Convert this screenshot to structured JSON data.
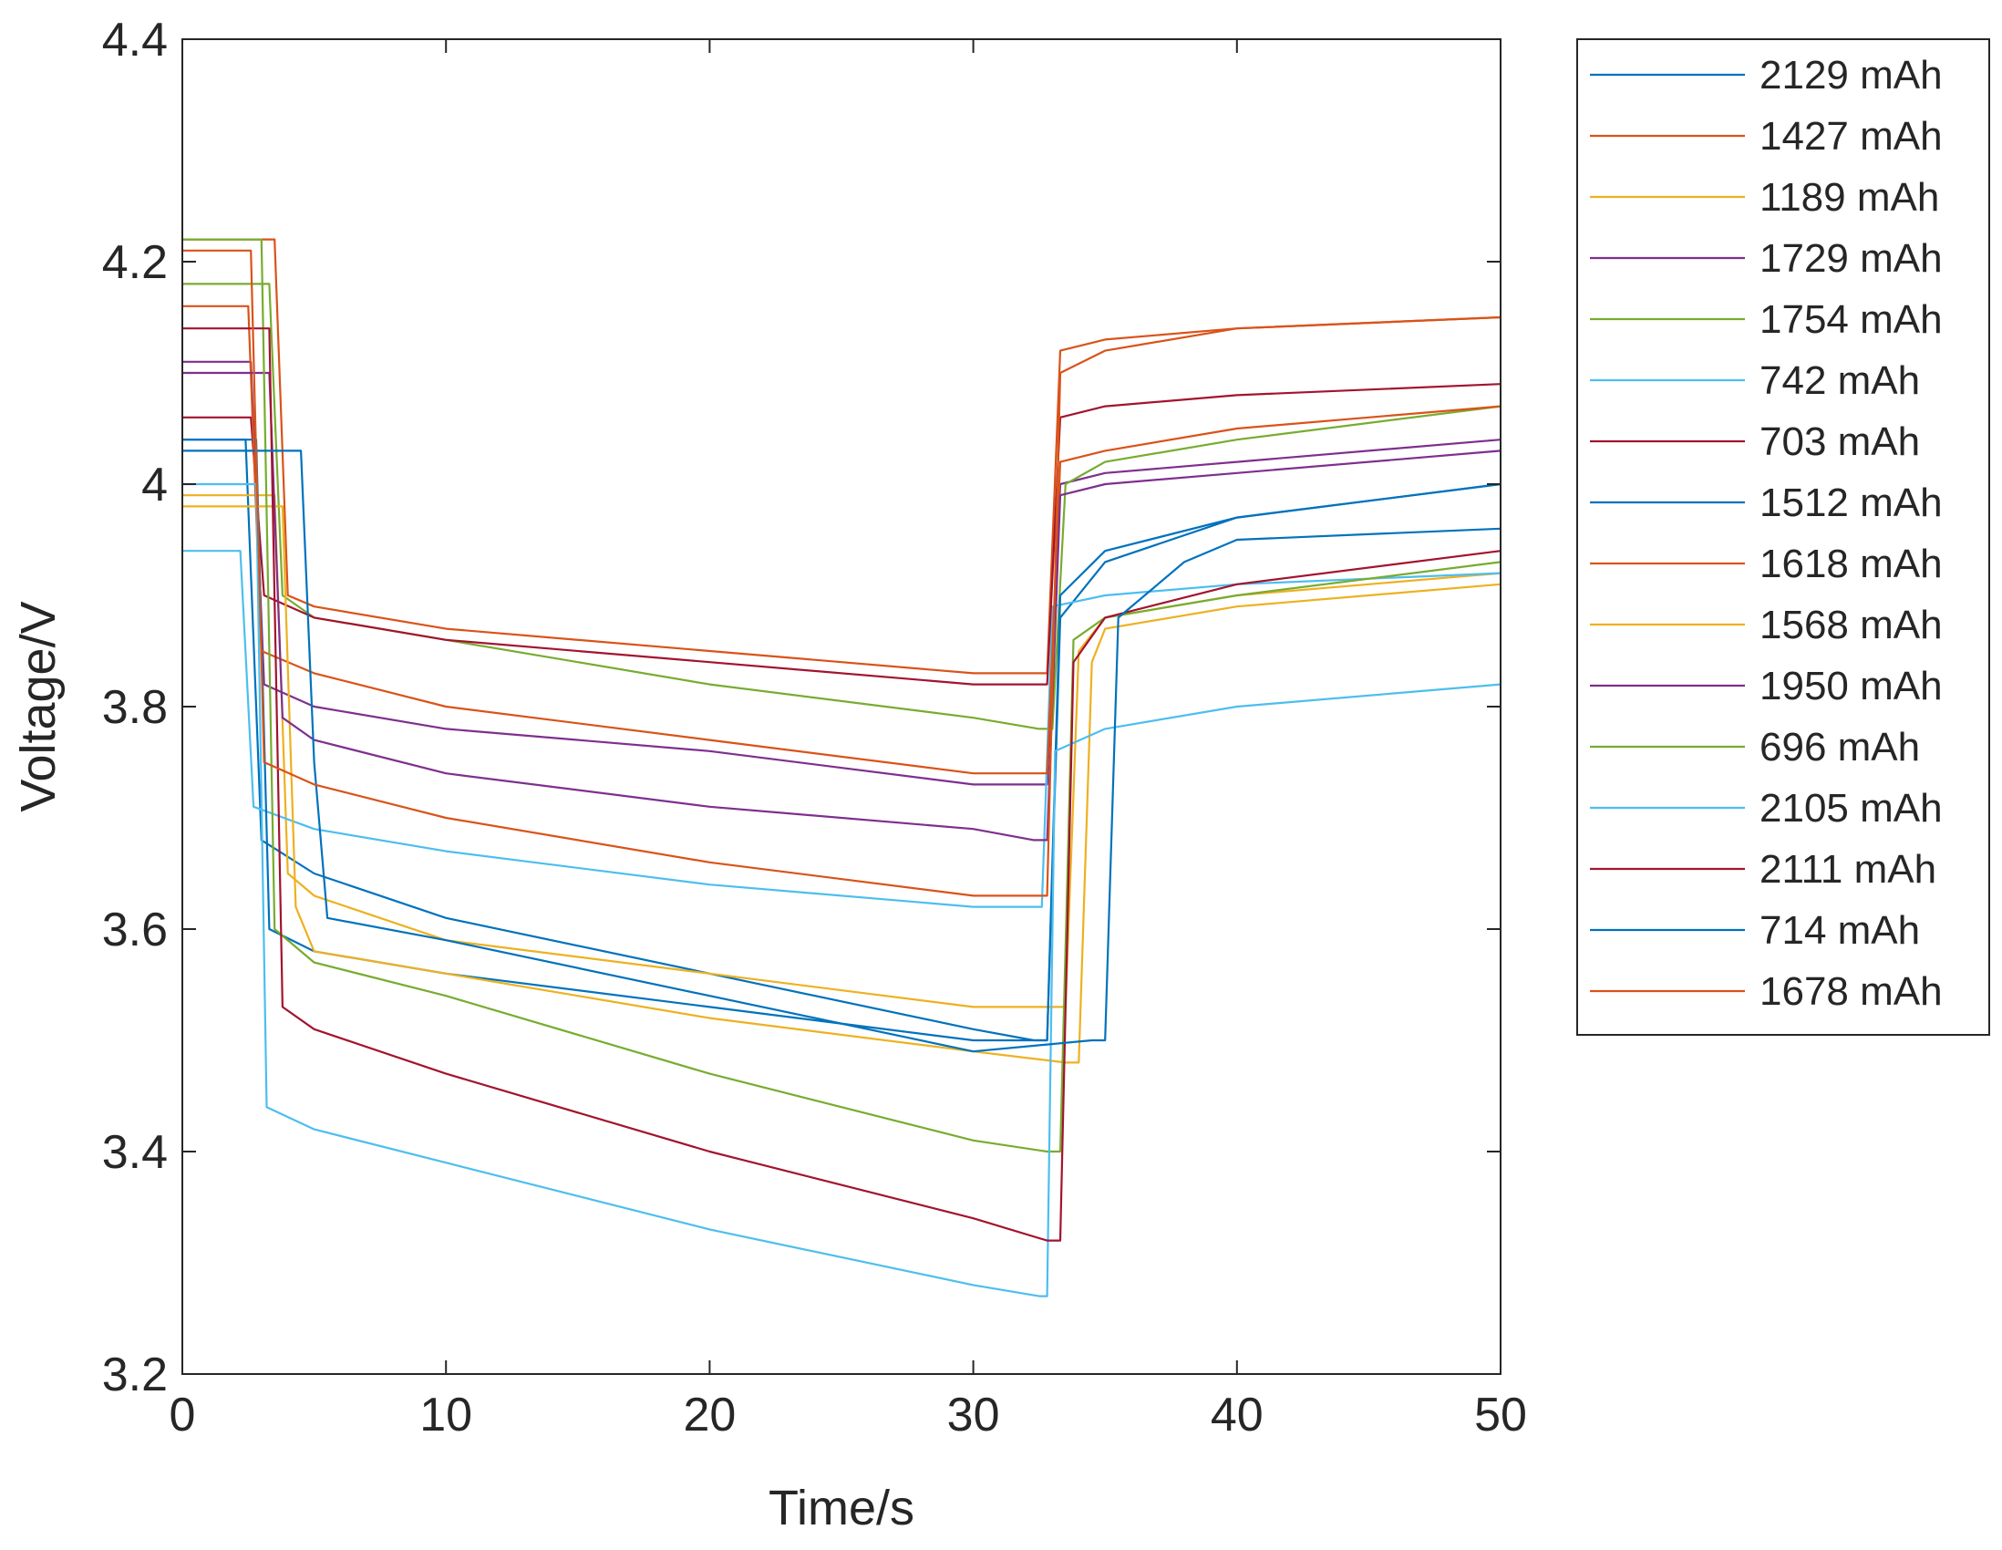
{
  "chart_data": {
    "type": "line",
    "title": "",
    "xlabel": "Time/s",
    "ylabel": "Voltage/V",
    "xlim": [
      0,
      50
    ],
    "ylim": [
      3.2,
      4.4
    ],
    "grid": false,
    "legend_position": "outside-top-right",
    "xticks": [
      0,
      10,
      20,
      30,
      40,
      50
    ],
    "xtick_labels": [
      "0",
      "10",
      "20",
      "30",
      "40",
      "50"
    ],
    "yticks": [
      3.2,
      3.4,
      3.6,
      3.8,
      4.0,
      4.2,
      4.4
    ],
    "ytick_labels": [
      "3.2",
      "3.4",
      "3.6",
      "3.8",
      "4",
      "4.2",
      "4.4"
    ],
    "series": [
      {
        "name": "2129 mAh",
        "color": "#0072BD",
        "x": [
          0,
          2.4,
          3.0,
          5,
          10,
          20,
          30,
          32.3,
          32.8,
          33.3,
          35,
          40,
          50
        ],
        "y": [
          4.04,
          4.04,
          3.68,
          3.65,
          3.61,
          3.56,
          3.51,
          3.5,
          3.5,
          3.88,
          3.93,
          3.97,
          4.0
        ]
      },
      {
        "name": "1427 mAh",
        "color": "#D95319",
        "x": [
          0,
          3.5,
          4.0,
          5,
          10,
          20,
          30,
          32.3,
          32.8,
          33.3,
          35,
          40,
          50
        ],
        "y": [
          4.22,
          4.22,
          3.9,
          3.89,
          3.87,
          3.85,
          3.83,
          3.83,
          3.83,
          4.12,
          4.13,
          4.14,
          4.15
        ]
      },
      {
        "name": "1189 mAh",
        "color": "#EDB120",
        "x": [
          0,
          3.5,
          4.0,
          5,
          10,
          20,
          30,
          33.0,
          33.5,
          34.0,
          35,
          40,
          50
        ],
        "y": [
          3.99,
          3.99,
          3.65,
          3.63,
          3.59,
          3.56,
          3.53,
          3.53,
          3.53,
          3.85,
          3.88,
          3.9,
          3.92
        ]
      },
      {
        "name": "1729 mAh",
        "color": "#7E2F8E",
        "x": [
          0,
          2.6,
          3.1,
          5,
          10,
          20,
          30,
          32.3,
          32.8,
          33.3,
          35,
          40,
          50
        ],
        "y": [
          4.11,
          4.11,
          3.82,
          3.8,
          3.78,
          3.76,
          3.73,
          3.73,
          3.73,
          4.0,
          4.01,
          4.02,
          4.04
        ]
      },
      {
        "name": "1754 mAh",
        "color": "#77AC30",
        "x": [
          0,
          3.3,
          3.8,
          5,
          10,
          20,
          30,
          32.5,
          33.0,
          33.5,
          35,
          40,
          50
        ],
        "y": [
          4.18,
          4.18,
          3.9,
          3.88,
          3.86,
          3.82,
          3.79,
          3.78,
          3.78,
          4.0,
          4.02,
          4.04,
          4.07
        ]
      },
      {
        "name": "742 mAh",
        "color": "#4DBEEE",
        "x": [
          0,
          2.2,
          2.7,
          5,
          10,
          20,
          30,
          32.2,
          32.6,
          33.0,
          35,
          40,
          50
        ],
        "y": [
          3.94,
          3.94,
          3.71,
          3.69,
          3.67,
          3.64,
          3.62,
          3.62,
          3.62,
          3.89,
          3.9,
          3.91,
          3.92
        ]
      },
      {
        "name": "703 mAh",
        "color": "#A2142F",
        "x": [
          0,
          2.6,
          3.1,
          5,
          10,
          20,
          30,
          32.3,
          32.8,
          33.3,
          35,
          40,
          50
        ],
        "y": [
          4.06,
          4.06,
          3.9,
          3.88,
          3.86,
          3.84,
          3.82,
          3.82,
          3.82,
          4.06,
          4.07,
          4.08,
          4.09
        ]
      },
      {
        "name": "1512 mAh",
        "color": "#0072BD",
        "x": [
          0,
          2.8,
          3.3,
          5,
          10,
          20,
          30,
          32.3,
          32.8,
          33.3,
          35,
          40,
          50
        ],
        "y": [
          4.04,
          4.04,
          3.6,
          3.58,
          3.56,
          3.53,
          3.5,
          3.5,
          3.5,
          3.9,
          3.94,
          3.97,
          4.0
        ]
      },
      {
        "name": "1618 mAh",
        "color": "#D95319",
        "x": [
          0,
          2.5,
          3.0,
          5,
          10,
          20,
          30,
          32.3,
          32.8,
          33.3,
          35,
          40,
          50
        ],
        "y": [
          4.16,
          4.16,
          3.85,
          3.83,
          3.8,
          3.77,
          3.74,
          3.74,
          3.74,
          4.02,
          4.03,
          4.05,
          4.07
        ]
      },
      {
        "name": "1568 mAh",
        "color": "#EDB120",
        "x": [
          0,
          3.8,
          4.3,
          5,
          10,
          20,
          30,
          33.5,
          34.0,
          34.5,
          35,
          40,
          50
        ],
        "y": [
          3.98,
          3.98,
          3.62,
          3.58,
          3.56,
          3.52,
          3.49,
          3.48,
          3.48,
          3.84,
          3.87,
          3.89,
          3.91
        ]
      },
      {
        "name": "1950 mAh",
        "color": "#7E2F8E",
        "x": [
          0,
          3.3,
          3.8,
          5,
          10,
          20,
          30,
          32.3,
          32.8,
          33.3,
          35,
          40,
          50
        ],
        "y": [
          4.1,
          4.1,
          3.79,
          3.77,
          3.74,
          3.71,
          3.69,
          3.68,
          3.68,
          3.99,
          4.0,
          4.01,
          4.03
        ]
      },
      {
        "name": "696 mAh",
        "color": "#77AC30",
        "x": [
          0,
          3.0,
          3.5,
          5,
          10,
          20,
          30,
          32.8,
          33.3,
          33.8,
          35,
          40,
          50
        ],
        "y": [
          4.22,
          4.22,
          3.6,
          3.57,
          3.54,
          3.47,
          3.41,
          3.4,
          3.4,
          3.86,
          3.88,
          3.9,
          3.93
        ]
      },
      {
        "name": "2105 mAh",
        "color": "#4DBEEE",
        "x": [
          0,
          2.8,
          3.2,
          5,
          10,
          20,
          30,
          32.5,
          32.8,
          33.1,
          35,
          40,
          50
        ],
        "y": [
          4.0,
          4.0,
          3.44,
          3.42,
          3.39,
          3.33,
          3.28,
          3.27,
          3.27,
          3.76,
          3.78,
          3.8,
          3.82
        ]
      },
      {
        "name": "2111 mAh",
        "color": "#A2142F",
        "x": [
          0,
          3.3,
          3.8,
          5,
          10,
          20,
          30,
          32.8,
          33.3,
          33.8,
          35,
          40,
          50
        ],
        "y": [
          4.14,
          4.14,
          3.53,
          3.51,
          3.47,
          3.4,
          3.34,
          3.32,
          3.32,
          3.84,
          3.88,
          3.91,
          3.94
        ]
      },
      {
        "name": "714 mAh",
        "color": "#0072BD",
        "x": [
          0,
          4.5,
          5.0,
          5.5,
          10,
          20,
          30,
          34.5,
          35.0,
          35.5,
          38,
          40,
          50
        ],
        "y": [
          4.03,
          4.03,
          3.75,
          3.61,
          3.59,
          3.54,
          3.49,
          3.5,
          3.5,
          3.88,
          3.93,
          3.95,
          3.96
        ]
      },
      {
        "name": "1678 mAh",
        "color": "#D95319",
        "x": [
          0,
          2.6,
          3.1,
          5,
          10,
          20,
          30,
          32.3,
          32.8,
          33.3,
          35,
          40,
          50
        ],
        "y": [
          4.21,
          4.21,
          3.75,
          3.73,
          3.7,
          3.66,
          3.63,
          3.63,
          3.63,
          4.1,
          4.12,
          4.14,
          4.15
        ]
      }
    ]
  }
}
